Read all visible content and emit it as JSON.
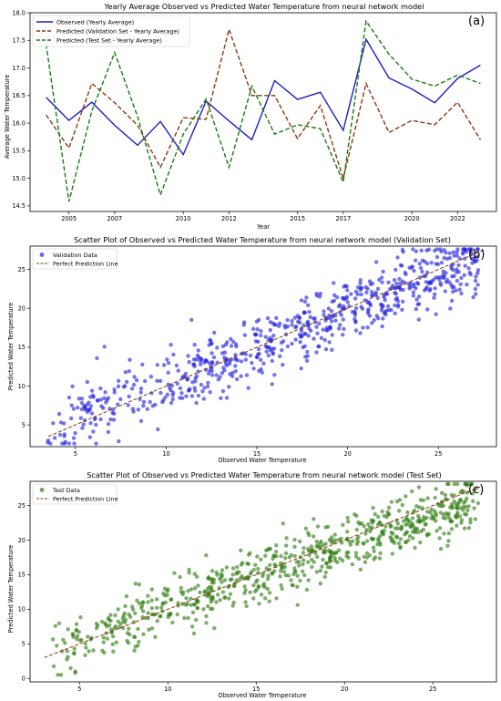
{
  "panel_labels": [
    "(a)",
    "(b)",
    "(c)"
  ],
  "chart_data": [
    {
      "type": "line",
      "title": "Yearly Average Observed vs Predicted Water Temperature from neural network model",
      "xlabel": "Year",
      "ylabel": "Average Water Temperature",
      "xlim": [
        2003.3,
        2023.7
      ],
      "ylim": [
        14.4,
        18.0
      ],
      "xticks": [
        2005,
        2007,
        2010,
        2012,
        2015,
        2017,
        2020,
        2022
      ],
      "yticks": [
        14.5,
        15.0,
        15.5,
        16.0,
        16.5,
        17.0,
        17.5,
        18.0
      ],
      "x": [
        2004,
        2005,
        2006,
        2007,
        2008,
        2009,
        2010,
        2011,
        2012,
        2013,
        2014,
        2015,
        2016,
        2017,
        2018,
        2019,
        2020,
        2021,
        2022,
        2023
      ],
      "legend_position": "top-left",
      "series": [
        {
          "name": "Observed (Yearly Average)",
          "color": "#1f1fbf",
          "style": "solid",
          "values": [
            16.47,
            16.05,
            16.38,
            15.96,
            15.6,
            16.03,
            15.43,
            16.4,
            16.04,
            15.7,
            16.77,
            16.43,
            16.56,
            15.87,
            17.52,
            16.82,
            16.62,
            16.37,
            16.81,
            17.05
          ]
        },
        {
          "name": "Predicted (Validation Set - Yearly Average)",
          "color": "#8b3a0e",
          "style": "dashed",
          "values": [
            16.15,
            15.55,
            16.72,
            16.37,
            15.96,
            15.2,
            16.1,
            16.07,
            17.7,
            16.5,
            16.5,
            15.72,
            16.32,
            15.0,
            16.72,
            15.83,
            16.05,
            15.97,
            16.38,
            15.7
          ]
        },
        {
          "name": "Predicted (Test Set - Yearly Average)",
          "color": "#1a7a12",
          "style": "dashed",
          "values": [
            17.43,
            14.58,
            16.22,
            17.28,
            16.12,
            14.7,
            15.8,
            16.44,
            15.2,
            16.67,
            15.8,
            15.97,
            15.9,
            14.93,
            17.85,
            17.25,
            16.8,
            16.67,
            16.87,
            16.72
          ]
        }
      ]
    },
    {
      "type": "scatter",
      "title": "Scatter Plot of Observed vs Predicted Water Temperature from neural network model (Validation Set)",
      "xlabel": "Observed Water Temperature",
      "ylabel": "Predicted Water Temperature",
      "xlim": [
        2.5,
        28.2
      ],
      "ylim": [
        2.2,
        28.0
      ],
      "xticks": [
        5,
        10,
        15,
        20,
        25
      ],
      "yticks": [
        5,
        10,
        15,
        20,
        25
      ],
      "legend_position": "top-left",
      "series": [
        {
          "name": "Validation Data",
          "color": "#2222dd",
          "generator": {
            "n": 700,
            "seed": 11,
            "xmin": 3.4,
            "xmax": 27.2,
            "slope": 0.93,
            "intercept": 1.1,
            "noise": 2.2
          }
        },
        {
          "name": "Perfect Prediction Line",
          "color": "#8b3a0e",
          "style": "dashed",
          "x": [
            3.5,
            27.5
          ],
          "y": [
            3.5,
            27.5
          ]
        }
      ]
    },
    {
      "type": "scatter",
      "title": "Scatter Plot of Observed vs Predicted Water Temperature from neural network model (Test Set)",
      "xlabel": "Observed Water Temperature",
      "ylabel": "Predicted Water Temperature",
      "xlim": [
        2.2,
        28.6
      ],
      "ylim": [
        -0.5,
        28.5
      ],
      "xticks": [
        5,
        10,
        15,
        20,
        25
      ],
      "yticks": [
        0,
        5,
        10,
        15,
        20,
        25
      ],
      "legend_position": "top-left",
      "series": [
        {
          "name": "Test Data",
          "color": "#2e7d10",
          "generator": {
            "n": 720,
            "seed": 29,
            "xmin": 3.0,
            "xmax": 27.6,
            "slope": 0.9,
            "intercept": 1.3,
            "noise": 2.1
          }
        },
        {
          "name": "Perfect Prediction Line",
          "color": "#8b3a0e",
          "style": "dashed",
          "x": [
            3.0,
            27.8
          ],
          "y": [
            3.0,
            27.8
          ]
        }
      ]
    }
  ]
}
